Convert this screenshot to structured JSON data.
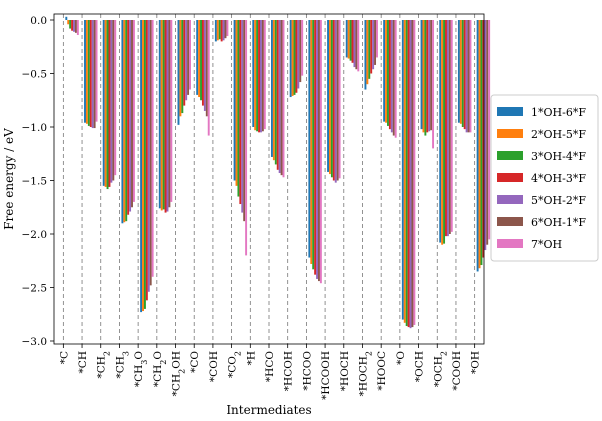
{
  "chart_data": {
    "type": "bar",
    "xlabel": "Intermediates",
    "ylabel": "Free energy / eV",
    "ylim": [
      -3.0,
      0.0
    ],
    "yticks": [
      "0.0",
      "-0.5",
      "-1.0",
      "-1.5",
      "-2.0",
      "-2.5",
      "-3.0"
    ],
    "grid": "vertical dashed separators between categories",
    "legend_position": "right, outside plot",
    "categories": [
      {
        "base": "*C",
        "sub": ""
      },
      {
        "base": "*CH",
        "sub": ""
      },
      {
        "base": "*CH",
        "sub": "2"
      },
      {
        "base": "*CH",
        "sub": "3"
      },
      {
        "base": "*CH",
        "sub": "3",
        "tail": "O"
      },
      {
        "base": "*CH",
        "sub": "2",
        "tail": "O"
      },
      {
        "base": "*CH",
        "sub": "2",
        "tail": "OH"
      },
      {
        "base": "*CO",
        "sub": ""
      },
      {
        "base": "*COH",
        "sub": ""
      },
      {
        "base": "*CO",
        "sub": "2"
      },
      {
        "base": "*H",
        "sub": ""
      },
      {
        "base": "*HCO",
        "sub": ""
      },
      {
        "base": "*HCOH",
        "sub": ""
      },
      {
        "base": "*HCOO",
        "sub": ""
      },
      {
        "base": "*HCOOH",
        "sub": ""
      },
      {
        "base": "*HOCH",
        "sub": ""
      },
      {
        "base": "*HOCH",
        "sub": "2"
      },
      {
        "base": "*HOOC",
        "sub": ""
      },
      {
        "base": "*O",
        "sub": ""
      },
      {
        "base": "*OCH",
        "sub": ""
      },
      {
        "base": "*OCH",
        "sub": "2"
      },
      {
        "base": "*COOH",
        "sub": ""
      },
      {
        "base": "*OH",
        "sub": ""
      }
    ],
    "series": [
      {
        "name": "1*OH-6*F",
        "color": "#1f77b4",
        "values": [
          0.03,
          -0.96,
          -1.55,
          -1.9,
          -2.73,
          -1.76,
          -0.98,
          -0.7,
          -0.2,
          -1.5,
          -1.0,
          -1.28,
          -0.72,
          -2.22,
          -1.42,
          -0.35,
          -0.65,
          -0.95,
          -2.8,
          -1.02,
          -2.08,
          -0.96,
          -2.35
        ]
      },
      {
        "name": "2*OH-5*F",
        "color": "#ff7f0e",
        "values": [
          -0.04,
          -0.97,
          -1.56,
          -1.89,
          -2.72,
          -1.78,
          -0.9,
          -0.72,
          -0.19,
          -1.55,
          -1.03,
          -1.31,
          -0.71,
          -2.28,
          -1.44,
          -0.36,
          -0.6,
          -0.96,
          -2.83,
          -1.05,
          -2.1,
          -0.97,
          -2.32
        ]
      },
      {
        "name": "3*OH-4*F",
        "color": "#2ca02c",
        "values": [
          -0.08,
          -0.99,
          -1.58,
          -1.88,
          -2.7,
          -1.77,
          -0.87,
          -0.75,
          -0.18,
          -1.65,
          -1.04,
          -1.35,
          -0.7,
          -2.33,
          -1.47,
          -0.38,
          -0.55,
          -0.99,
          -2.86,
          -1.08,
          -2.09,
          -1.0,
          -2.29
        ]
      },
      {
        "name": "4*OH-3*F",
        "color": "#d62728",
        "values": [
          -0.1,
          -1.0,
          -1.56,
          -1.82,
          -2.62,
          -1.8,
          -0.8,
          -0.8,
          -0.2,
          -1.72,
          -1.05,
          -1.4,
          -0.68,
          -2.38,
          -1.5,
          -0.4,
          -0.5,
          -1.02,
          -2.87,
          -1.05,
          -2.02,
          -1.02,
          -2.22
        ]
      },
      {
        "name": "5*OH-2*F",
        "color": "#9467bd",
        "values": [
          -0.11,
          -1.01,
          -1.52,
          -1.79,
          -2.54,
          -1.79,
          -0.75,
          -0.85,
          -0.19,
          -1.8,
          -1.05,
          -1.43,
          -0.64,
          -2.42,
          -1.52,
          -0.44,
          -0.46,
          -1.05,
          -2.88,
          -1.04,
          -2.02,
          -1.05,
          -2.15
        ]
      },
      {
        "name": "6*OH-1*F",
        "color": "#8c564b",
        "values": [
          -0.12,
          -1.01,
          -1.5,
          -1.75,
          -2.48,
          -1.75,
          -0.7,
          -0.9,
          -0.17,
          -1.88,
          -1.04,
          -1.45,
          -0.58,
          -2.44,
          -1.5,
          -0.46,
          -0.42,
          -1.08,
          -2.87,
          -1.03,
          -2.0,
          -1.05,
          -2.1
        ]
      },
      {
        "name": "7*OH",
        "color": "#e377c2",
        "values": [
          -0.14,
          -0.95,
          -1.45,
          -1.7,
          -2.4,
          -1.7,
          -0.65,
          -1.08,
          -0.15,
          -2.2,
          -1.02,
          -1.47,
          -0.52,
          -2.46,
          -1.48,
          -0.48,
          -0.35,
          -1.1,
          -2.85,
          -1.2,
          -1.98,
          -1.05,
          -2.05
        ]
      }
    ]
  }
}
